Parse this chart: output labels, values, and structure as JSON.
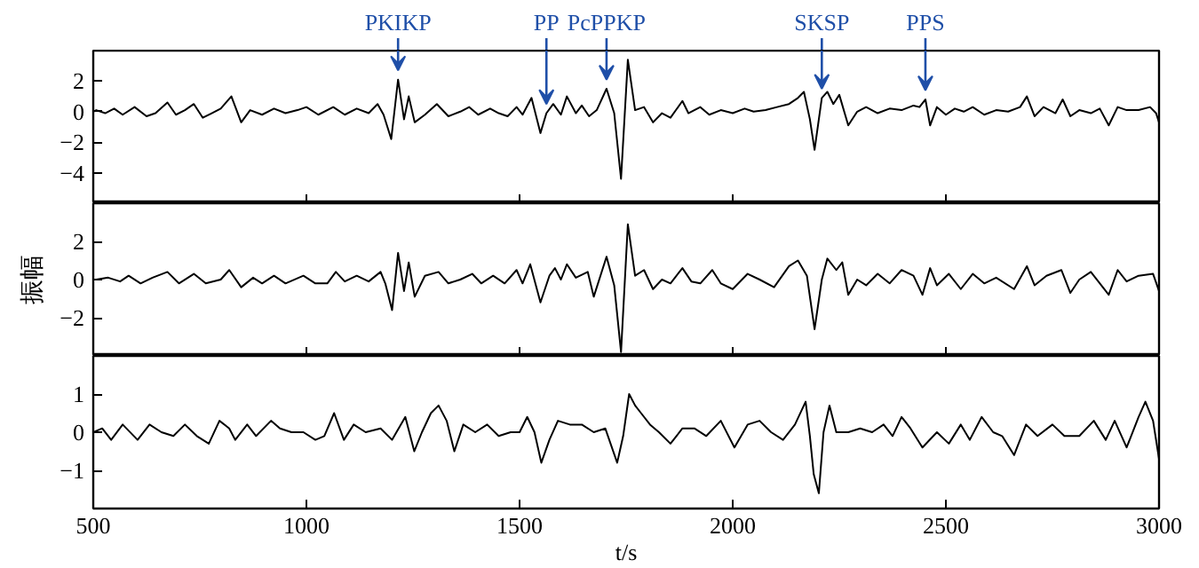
{
  "chart_data": [
    {
      "type": "line",
      "tick_labels": "y",
      "xlim": [
        500,
        3000
      ],
      "xticks": [
        500,
        1000,
        1500,
        2000,
        2500,
        3000
      ],
      "ylim": [
        -6,
        4
      ],
      "yticks": [
        2,
        0,
        -2,
        -4
      ],
      "annotations": [
        {
          "text": "PKIKP",
          "x": 1215,
          "y": 2.1
        },
        {
          "text": "PP",
          "x": 1563,
          "y": -0.1
        },
        {
          "text": "PcPPKP",
          "x": 1704,
          "y": 1.5
        },
        {
          "text": "SKSP",
          "x": 2209,
          "y": 0.9
        },
        {
          "text": "PPS",
          "x": 2452,
          "y": 0.8
        }
      ],
      "x": [
        500,
        507,
        528,
        549,
        569,
        597,
        625,
        646,
        674,
        694,
        715,
        736,
        757,
        778,
        799,
        824,
        847,
        868,
        896,
        924,
        951,
        979,
        1000,
        1028,
        1063,
        1090,
        1118,
        1146,
        1167,
        1181,
        1199,
        1215,
        1229,
        1240,
        1254,
        1278,
        1306,
        1333,
        1361,
        1382,
        1403,
        1431,
        1451,
        1472,
        1493,
        1507,
        1528,
        1549,
        1563,
        1579,
        1597,
        1611,
        1632,
        1646,
        1663,
        1681,
        1704,
        1722,
        1738,
        1754,
        1771,
        1792,
        1813,
        1834,
        1854,
        1882,
        1896,
        1924,
        1945,
        1972,
        2000,
        2028,
        2049,
        2077,
        2104,
        2132,
        2153,
        2167,
        2181,
        2192,
        2209,
        2222,
        2236,
        2250,
        2271,
        2292,
        2313,
        2340,
        2368,
        2396,
        2424,
        2438,
        2452,
        2463,
        2479,
        2500,
        2521,
        2542,
        2563,
        2590,
        2618,
        2646,
        2674,
        2690,
        2708,
        2729,
        2757,
        2774,
        2792,
        2813,
        2840,
        2861,
        2882,
        2903,
        2924,
        2952,
        2979,
        2993,
        3000
      ],
      "series": [
        {
          "color": "#000000",
          "values": [
            0,
            0.1,
            -0.1,
            0.2,
            -0.2,
            0.3,
            -0.3,
            -0.1,
            0.6,
            -0.2,
            0.1,
            0.5,
            -0.4,
            -0.1,
            0.2,
            1.0,
            -0.7,
            0.1,
            -0.2,
            0.2,
            -0.1,
            0.1,
            0.3,
            -0.2,
            0.3,
            -0.2,
            0.2,
            -0.1,
            0.5,
            -0.2,
            -1.8,
            2.1,
            -0.5,
            1.0,
            -0.7,
            -0.2,
            0.5,
            -0.3,
            0.0,
            0.3,
            -0.2,
            0.2,
            -0.1,
            -0.3,
            0.3,
            -0.2,
            0.9,
            -1.4,
            -0.1,
            0.5,
            -0.2,
            1.0,
            -0.1,
            0.4,
            -0.3,
            0.1,
            1.5,
            -0.1,
            -4.4,
            3.4,
            0.1,
            0.3,
            -0.7,
            -0.1,
            -0.4,
            0.7,
            -0.1,
            0.3,
            -0.2,
            0.1,
            -0.1,
            0.2,
            0.0,
            0.1,
            0.3,
            0.5,
            0.9,
            1.3,
            -0.5,
            -2.5,
            0.9,
            1.3,
            0.5,
            1.1,
            -0.9,
            0.0,
            0.3,
            -0.1,
            0.2,
            0.1,
            0.4,
            0.3,
            0.8,
            -0.9,
            0.3,
            -0.2,
            0.2,
            0.0,
            0.3,
            -0.2,
            0.1,
            0.0,
            0.3,
            1.0,
            -0.3,
            0.3,
            -0.1,
            0.8,
            -0.3,
            0.1,
            -0.1,
            0.2,
            -0.9,
            0.3,
            0.1,
            0.1,
            0.3,
            -0.1,
            -0.7
          ]
        }
      ]
    },
    {
      "type": "line",
      "tick_labels": "y",
      "ylabel": "振幅",
      "xlim": [
        500,
        3000
      ],
      "xticks": [
        500,
        1000,
        1500,
        2000,
        2500,
        3000
      ],
      "ylim": [
        -4,
        4
      ],
      "yticks": [
        2,
        0,
        -2
      ],
      "x": [
        500,
        507,
        535,
        563,
        583,
        611,
        639,
        674,
        701,
        736,
        764,
        799,
        819,
        847,
        875,
        896,
        924,
        951,
        993,
        1021,
        1049,
        1069,
        1090,
        1118,
        1146,
        1174,
        1185,
        1201,
        1215,
        1229,
        1240,
        1254,
        1278,
        1310,
        1333,
        1361,
        1389,
        1410,
        1438,
        1465,
        1493,
        1507,
        1525,
        1549,
        1570,
        1583,
        1597,
        1611,
        1632,
        1660,
        1674,
        1704,
        1722,
        1738,
        1754,
        1771,
        1792,
        1813,
        1834,
        1854,
        1882,
        1903,
        1924,
        1952,
        1972,
        2000,
        2035,
        2063,
        2097,
        2132,
        2153,
        2174,
        2192,
        2209,
        2222,
        2243,
        2257,
        2271,
        2292,
        2313,
        2340,
        2368,
        2396,
        2424,
        2445,
        2463,
        2479,
        2507,
        2535,
        2563,
        2590,
        2618,
        2660,
        2690,
        2708,
        2736,
        2771,
        2792,
        2813,
        2840,
        2882,
        2903,
        2924,
        2952,
        2986,
        3000
      ],
      "series": [
        {
          "color": "#000000",
          "values": [
            0,
            0,
            0.1,
            -0.1,
            0.2,
            -0.2,
            0.1,
            0.4,
            -0.2,
            0.3,
            -0.2,
            0,
            0.5,
            -0.4,
            0.1,
            -0.2,
            0.2,
            -0.2,
            0.2,
            -0.2,
            -0.2,
            0.4,
            -0.1,
            0.2,
            -0.1,
            0.4,
            -0.2,
            -1.6,
            1.4,
            -0.6,
            0.9,
            -0.9,
            0.2,
            0.4,
            -0.2,
            0,
            0.3,
            -0.2,
            0.2,
            -0.2,
            0.5,
            -0.2,
            0.8,
            -1.2,
            0.2,
            0.6,
            0,
            0.8,
            0.1,
            0.4,
            -0.9,
            1.2,
            -0.3,
            -3.8,
            2.9,
            0.2,
            0.5,
            -0.5,
            0,
            -0.2,
            0.6,
            -0.1,
            -0.2,
            0.5,
            -0.2,
            -0.5,
            0.3,
            0,
            -0.4,
            0.7,
            1.0,
            0.2,
            -2.6,
            0,
            1.1,
            0.5,
            0.9,
            -0.8,
            0,
            -0.3,
            0.3,
            -0.2,
            0.5,
            0.2,
            -0.8,
            0.6,
            -0.3,
            0.3,
            -0.5,
            0.3,
            -0.2,
            0.1,
            -0.5,
            0.7,
            -0.3,
            0.2,
            0.5,
            -0.7,
            0,
            0.4,
            -0.8,
            0.5,
            -0.1,
            0.2,
            0.3,
            -0.6
          ]
        }
      ]
    },
    {
      "type": "line",
      "xlabel": "t/s",
      "xlim": [
        500,
        3000
      ],
      "xticks": [
        500,
        1000,
        1500,
        2000,
        2500,
        3000
      ],
      "ylim": [
        -2,
        2
      ],
      "yticks": [
        1,
        0,
        -1
      ],
      "x": [
        500,
        521,
        542,
        569,
        604,
        632,
        660,
        688,
        715,
        743,
        771,
        796,
        819,
        833,
        861,
        882,
        917,
        938,
        965,
        993,
        1021,
        1042,
        1065,
        1088,
        1111,
        1139,
        1174,
        1201,
        1232,
        1253,
        1271,
        1292,
        1310,
        1329,
        1347,
        1368,
        1396,
        1424,
        1451,
        1479,
        1500,
        1518,
        1535,
        1551,
        1570,
        1590,
        1618,
        1646,
        1674,
        1701,
        1729,
        1743,
        1757,
        1771,
        1785,
        1806,
        1827,
        1854,
        1882,
        1910,
        1938,
        1972,
        2004,
        2035,
        2063,
        2090,
        2118,
        2146,
        2171,
        2181,
        2190,
        2202,
        2213,
        2227,
        2243,
        2271,
        2299,
        2327,
        2354,
        2375,
        2396,
        2417,
        2445,
        2479,
        2507,
        2535,
        2556,
        2584,
        2611,
        2632,
        2660,
        2688,
        2715,
        2750,
        2778,
        2813,
        2847,
        2875,
        2896,
        2924,
        2952,
        2968,
        2986,
        3000
      ],
      "series": [
        {
          "color": "#000000",
          "values": [
            0,
            0.1,
            -0.2,
            0.2,
            -0.2,
            0.2,
            0,
            -0.1,
            0.2,
            -0.1,
            -0.3,
            0.3,
            0.1,
            -0.2,
            0.2,
            -0.1,
            0.3,
            0.1,
            0,
            0,
            -0.2,
            -0.1,
            0.5,
            -0.2,
            0.2,
            0,
            0.1,
            -0.2,
            0.4,
            -0.5,
            0,
            0.5,
            0.7,
            0.3,
            -0.5,
            0.2,
            0,
            0.2,
            -0.1,
            0,
            0,
            0.4,
            0,
            -0.8,
            -0.2,
            0.3,
            0.2,
            0.2,
            0,
            0.1,
            -0.8,
            -0.1,
            1.0,
            0.7,
            0.5,
            0.2,
            0,
            -0.3,
            0.1,
            0.1,
            -0.1,
            0.3,
            -0.4,
            0.2,
            0.3,
            0,
            -0.2,
            0.2,
            0.8,
            -0.1,
            -1.1,
            -1.6,
            0,
            0.7,
            0,
            0,
            0.1,
            0,
            0.2,
            -0.1,
            0.4,
            0.1,
            -0.4,
            0,
            -0.3,
            0.2,
            -0.2,
            0.4,
            0,
            -0.1,
            -0.6,
            0.2,
            -0.1,
            0.2,
            -0.1,
            -0.1,
            0.3,
            -0.2,
            0.3,
            -0.4,
            0.4,
            0.8,
            0.3,
            -0.7
          ]
        }
      ]
    }
  ]
}
